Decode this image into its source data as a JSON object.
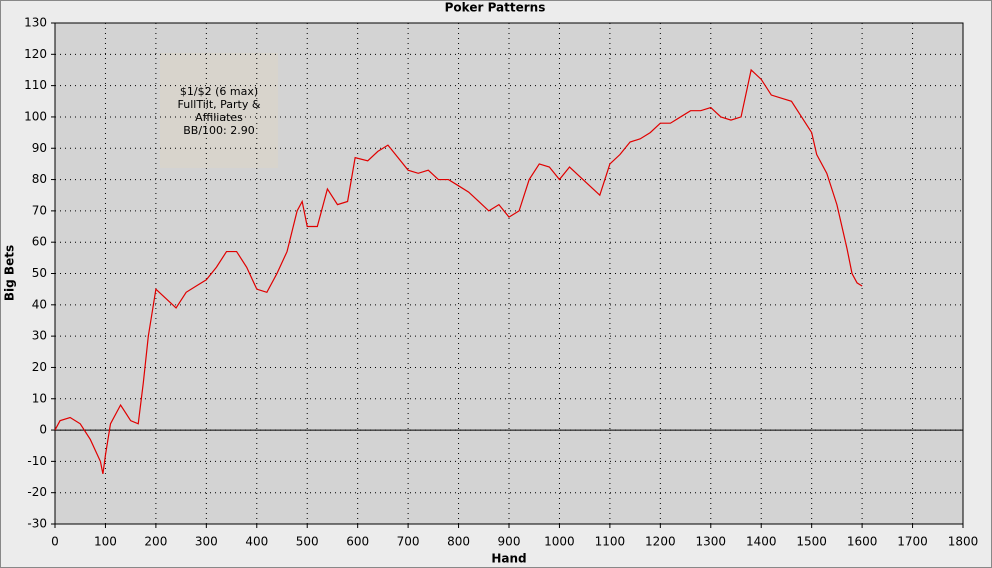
{
  "chart_data": {
    "type": "line",
    "title": "Poker Patterns",
    "x_label": "Hand",
    "y_label": "Big Bets",
    "annotation": [
      "$1/$2 (6 max)",
      "FullTilt, Party &",
      "Affiliates",
      "BB/100: 2.90"
    ],
    "x": [
      0,
      10,
      30,
      50,
      70,
      90,
      95,
      100,
      110,
      130,
      150,
      165,
      175,
      185,
      195,
      200,
      220,
      240,
      260,
      280,
      300,
      320,
      340,
      360,
      380,
      400,
      420,
      440,
      460,
      480,
      490,
      500,
      520,
      540,
      560,
      580,
      595,
      620,
      640,
      660,
      680,
      700,
      720,
      740,
      760,
      780,
      800,
      820,
      840,
      860,
      880,
      900,
      920,
      940,
      960,
      980,
      1000,
      1020,
      1040,
      1060,
      1080,
      1100,
      1120,
      1140,
      1160,
      1180,
      1200,
      1220,
      1240,
      1260,
      1280,
      1300,
      1320,
      1340,
      1360,
      1380,
      1400,
      1420,
      1440,
      1460,
      1480,
      1500,
      1510,
      1530,
      1550,
      1570,
      1580,
      1590,
      1600
    ],
    "values": [
      0,
      3,
      4,
      2,
      -3,
      -10,
      -14,
      -8,
      2,
      8,
      3,
      2,
      15,
      30,
      40,
      45,
      42,
      39,
      44,
      46,
      48,
      52,
      57,
      57,
      52,
      45,
      44,
      50,
      57,
      70,
      73,
      65,
      65,
      77,
      72,
      73,
      87,
      86,
      89,
      91,
      87,
      83,
      82,
      83,
      80,
      80,
      78,
      76,
      73,
      70,
      72,
      68,
      70,
      80,
      85,
      84,
      80,
      84,
      81,
      78,
      75,
      85,
      88,
      92,
      93,
      95,
      98,
      98,
      100,
      102,
      102,
      103,
      100,
      99,
      100,
      115,
      112,
      107,
      106,
      105,
      100,
      95,
      88,
      82,
      72,
      58,
      50,
      47,
      46
    ],
    "color": "#e00000",
    "xlim": [
      0,
      1800
    ],
    "xticks": [
      0,
      100,
      200,
      300,
      400,
      500,
      600,
      700,
      800,
      900,
      1000,
      1100,
      1200,
      1300,
      1400,
      1500,
      1600,
      1700,
      1800
    ],
    "ylim": [
      -30,
      130
    ],
    "yticks": [
      -30,
      -20,
      -10,
      0,
      10,
      20,
      30,
      40,
      50,
      60,
      70,
      80,
      90,
      100,
      110,
      120,
      130
    ],
    "grid": true
  }
}
